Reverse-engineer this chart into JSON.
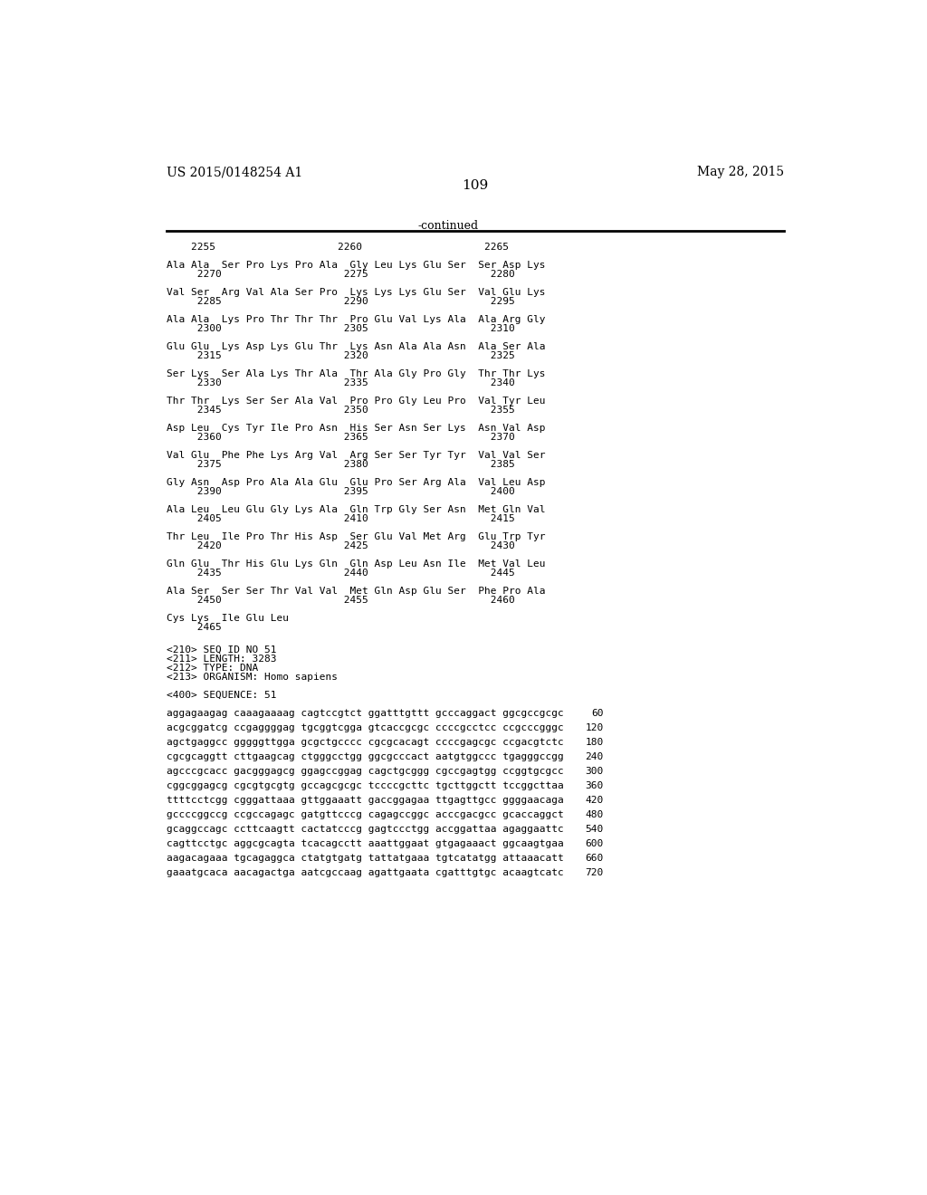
{
  "bg_color": "#ffffff",
  "top_left_text": "US 2015/0148254 A1",
  "top_right_text": "May 28, 2015",
  "page_number": "109",
  "continued_text": "-continued",
  "monospace_font_size": 8.0,
  "header_font_size": 10,
  "page_num_font_size": 11,
  "amino_lines": [
    {
      "numbers": "    2255                    2260                    2265",
      "seq": "",
      "numline": true
    },
    {
      "seq": "Ala Ala  Ser Pro Lys Pro Ala  Gly Leu Lys Glu Ser  Ser Asp Lys",
      "numbers": "     2270                    2275                    2280"
    },
    {
      "seq": "Val Ser  Arg Val Ala Ser Pro  Lys Lys Lys Glu Ser  Val Glu Lys",
      "numbers": "     2285                    2290                    2295"
    },
    {
      "seq": "Ala Ala  Lys Pro Thr Thr Thr  Pro Glu Val Lys Ala  Ala Arg Gly",
      "numbers": "     2300                    2305                    2310"
    },
    {
      "seq": "Glu Glu  Lys Asp Lys Glu Thr  Lys Asn Ala Ala Asn  Ala Ser Ala",
      "numbers": "     2315                    2320                    2325"
    },
    {
      "seq": "Ser Lys  Ser Ala Lys Thr Ala  Thr Ala Gly Pro Gly  Thr Thr Lys",
      "numbers": "     2330                    2335                    2340"
    },
    {
      "seq": "Thr Thr  Lys Ser Ser Ala Val  Pro Pro Gly Leu Pro  Val Tyr Leu",
      "numbers": "     2345                    2350                    2355"
    },
    {
      "seq": "Asp Leu  Cys Tyr Ile Pro Asn  His Ser Asn Ser Lys  Asn Val Asp",
      "numbers": "     2360                    2365                    2370"
    },
    {
      "seq": "Val Glu  Phe Phe Lys Arg Val  Arg Ser Ser Tyr Tyr  Val Val Ser",
      "numbers": "     2375                    2380                    2385"
    },
    {
      "seq": "Gly Asn  Asp Pro Ala Ala Glu  Glu Pro Ser Arg Ala  Val Leu Asp",
      "numbers": "     2390                    2395                    2400"
    },
    {
      "seq": "Ala Leu  Leu Glu Gly Lys Ala  Gln Trp Gly Ser Asn  Met Gln Val",
      "numbers": "     2405                    2410                    2415"
    },
    {
      "seq": "Thr Leu  Ile Pro Thr His Asp  Ser Glu Val Met Arg  Glu Trp Tyr",
      "numbers": "     2420                    2425                    2430"
    },
    {
      "seq": "Gln Glu  Thr His Glu Lys Gln  Gln Asp Leu Asn Ile  Met Val Leu",
      "numbers": "     2435                    2440                    2445"
    },
    {
      "seq": "Ala Ser  Ser Ser Thr Val Val  Met Gln Asp Glu Ser  Phe Pro Ala",
      "numbers": "     2450                    2455                    2460"
    },
    {
      "seq": "Cys Lys  Ile Glu Leu",
      "numbers": "     2465"
    }
  ],
  "metadata_lines": [
    "<210> SEQ ID NO 51",
    "<211> LENGTH: 3283",
    "<212> TYPE: DNA",
    "<213> ORGANISM: Homo sapiens"
  ],
  "sequence_header": "<400> SEQUENCE: 51",
  "dna_lines": [
    {
      "seq": "aggagaagag caaagaaaag cagtccgtct ggatttgttt gcccaggact ggcgccgcgc",
      "num": "60"
    },
    {
      "seq": "acgcggatcg ccgaggggag tgcggtcgga gtcaccgcgc ccccgcctcc ccgcccgggc",
      "num": "120"
    },
    {
      "seq": "agctgaggcc gggggttgga gcgctgcccc cgcgcacagt ccccgagcgc ccgacgtctc",
      "num": "180"
    },
    {
      "seq": "cgcgcaggtt cttgaagcag ctgggcctgg ggcgcccact aatgtggccc tgagggccgg",
      "num": "240"
    },
    {
      "seq": "agcccgcacc gacgggagcg ggagccggag cagctgcggg cgccgagtgg ccggtgcgcc",
      "num": "300"
    },
    {
      "seq": "cggcggagcg cgcgtgcgtg gccagcgcgc tccccgcttc tgcttggctt tccggcttaa",
      "num": "360"
    },
    {
      "seq": "ttttcctcgg cgggattaaa gttggaaatt gaccggagaa ttgagttgcc ggggaacaga",
      "num": "420"
    },
    {
      "seq": "gccccggccg ccgccagagc gatgttcccg cagagccggc acccgacgcc gcaccaggct",
      "num": "480"
    },
    {
      "seq": "gcaggccagc ccttcaagtt cactatcccg gagtccctgg accggattaa agaggaattc",
      "num": "540"
    },
    {
      "seq": "cagttcctgc aggcgcagta tcacagcctt aaattggaat gtgagaaact ggcaagtgaa",
      "num": "600"
    },
    {
      "seq": "aagacagaaa tgcagaggca ctatgtgatg tattatgaaa tgtcatatgg attaaacatt",
      "num": "660"
    },
    {
      "seq": "gaaatgcaca aacagactga aatcgccaag agattgaata cgatttgtgc acaagtcatc",
      "num": "720"
    }
  ]
}
